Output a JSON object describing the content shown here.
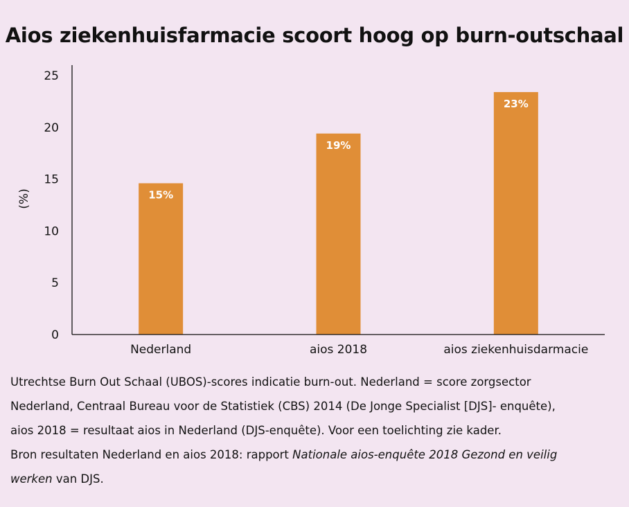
{
  "chart_data": {
    "type": "bar",
    "title": "Aios ziekenhuisfarmacie scoort hoog op burn-outschaal",
    "ylabel": "(%)",
    "xlabel": "",
    "categories": [
      "Nederland",
      "aios 2018",
      "aios ziekenhuisdarmacie"
    ],
    "values": [
      14.6,
      19.4,
      23.4
    ],
    "data_labels": [
      "15%",
      "19%",
      "23%"
    ],
    "ylim": [
      0,
      25
    ],
    "yticks": [
      0,
      5,
      10,
      15,
      20,
      25
    ],
    "grid": false,
    "legend": "none",
    "bar_color": "#e08e37",
    "label_color": "#ffffff"
  },
  "caption": {
    "line1": "Utrechtse Burn Out Schaal (UBOS)-scores indicatie burn-out. Nederland = score zorgsector",
    "line2": "Nederland, Centraal Bureau voor de Statistiek (CBS) 2014 (De Jonge Specialist [DJS]- enquête),",
    "line3": "aios 2018 = resultaat aios in Nederland (DJS-enquête). Voor een toelichting zie kader."
  },
  "source": {
    "prefix": "Bron resultaten Nederland en aios 2018: rapport ",
    "report_title_part1": "Nationale aios-enquête 2018 Gezond en veilig",
    "report_title_part2": "werken",
    "suffix": " van DJS."
  },
  "colors": {
    "background": "#f3e5f1",
    "bar": "#e08e37",
    "text": "#111111"
  }
}
